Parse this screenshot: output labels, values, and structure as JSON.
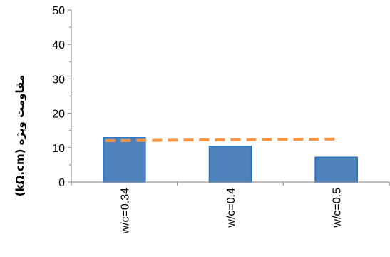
{
  "chart_data": {
    "type": "bar",
    "title": "",
    "xlabel": "",
    "ylabel": "(kΩ.cm) مقاومت ویژه",
    "ylim": [
      0,
      50
    ],
    "yticks": [
      "0",
      "10",
      "20",
      "30",
      "40",
      "50"
    ],
    "categories": [
      "w/c=0.34",
      "w/c=0.4",
      "w/c=0.5"
    ],
    "series": [
      {
        "values": [
          12.9,
          10.4,
          7.2
        ],
        "color": "#4f81bd",
        "border": "#1f6fc0",
        "style": "bar"
      },
      {
        "values": [
          12.0,
          12.3,
          12.5
        ],
        "color": "#f79646",
        "style": "dashed-line"
      }
    ],
    "grid": false,
    "legend": "none"
  }
}
